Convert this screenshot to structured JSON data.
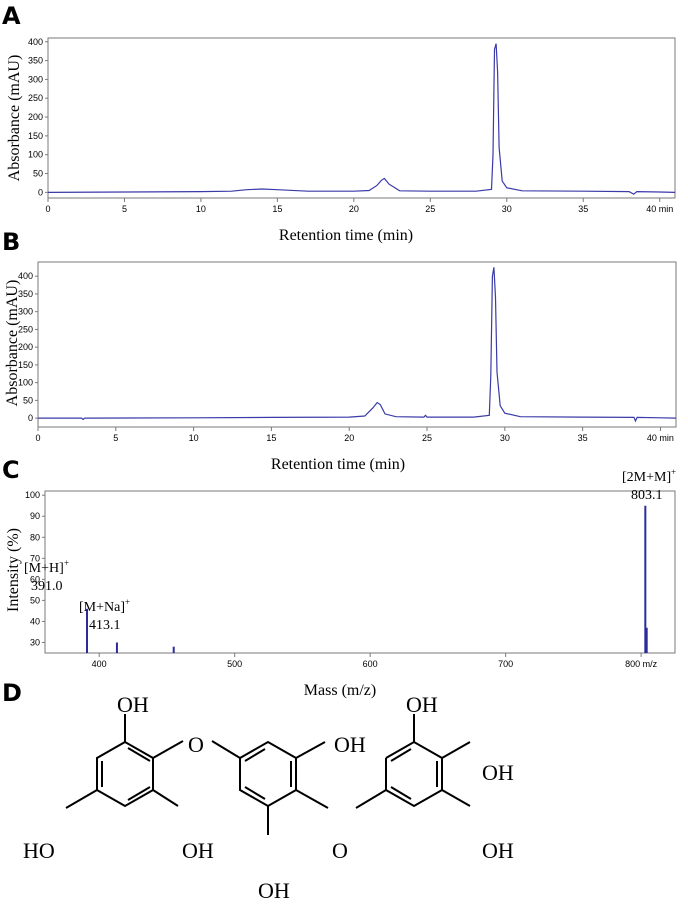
{
  "panels": {
    "a": {
      "letter": "A"
    },
    "b": {
      "letter": "B"
    },
    "c": {
      "letter": "C"
    },
    "d": {
      "letter": "D"
    }
  },
  "chart_data": [
    {
      "type": "line",
      "panel": "A",
      "xlabel": "Retention time (min)",
      "ylabel": "Absorbance (mAU)",
      "xlim": [
        0,
        41
      ],
      "ylim": [
        -15,
        410
      ],
      "xticks": [
        "0",
        "5",
        "10",
        "15",
        "20",
        "25",
        "30",
        "35",
        "40 min"
      ],
      "yticks": [
        "0",
        "50",
        "100",
        "150",
        "200",
        "250",
        "300",
        "350",
        "400"
      ],
      "color": "#3a3aa8",
      "series": [
        {
          "x": [
            0,
            5,
            10,
            12,
            13,
            14,
            15,
            17,
            20,
            21,
            21.5,
            21.8,
            22,
            22.3,
            23,
            25,
            28,
            29,
            29.1,
            29.2,
            29.3,
            29.4,
            29.5,
            29.7,
            30,
            31,
            35,
            38,
            38.3,
            38.5,
            40,
            41
          ],
          "y": [
            0,
            1,
            2,
            3,
            7,
            9,
            7,
            3,
            3,
            5,
            18,
            32,
            37,
            22,
            4,
            3,
            3,
            8,
            100,
            380,
            395,
            320,
            120,
            30,
            12,
            4,
            3,
            2,
            -5,
            2,
            1,
            0
          ]
        }
      ]
    },
    {
      "type": "line",
      "panel": "B",
      "xlabel": "Retention time (min)",
      "ylabel": "Absorbance (mAU)",
      "xlim": [
        0,
        41
      ],
      "ylim": [
        -25,
        440
      ],
      "xticks": [
        "0",
        "5",
        "10",
        "15",
        "20",
        "25",
        "30",
        "35",
        "40 min"
      ],
      "yticks": [
        "0",
        "50",
        "100",
        "150",
        "200",
        "250",
        "300",
        "350",
        "400"
      ],
      "color": "#3a3aa8",
      "series": [
        {
          "x": [
            0,
            2.8,
            2.9,
            3,
            10,
            15,
            20,
            21,
            21.5,
            21.8,
            22,
            22.3,
            23,
            24.8,
            24.9,
            25,
            28,
            29,
            29.1,
            29.2,
            29.3,
            29.4,
            29.5,
            29.7,
            30,
            31,
            35,
            38.3,
            38.4,
            38.5,
            40,
            41
          ],
          "y": [
            0,
            0,
            -4,
            0,
            1,
            2,
            3,
            6,
            28,
            44,
            38,
            12,
            4,
            3,
            8,
            3,
            3,
            8,
            120,
            400,
            425,
            340,
            130,
            35,
            14,
            4,
            3,
            2,
            -8,
            2,
            1,
            0
          ]
        }
      ]
    },
    {
      "type": "bar",
      "panel": "C",
      "xlabel": "Mass (m/z)",
      "ylabel": "Intensity (%)",
      "xlim": [
        360,
        825
      ],
      "ylim": [
        25,
        102
      ],
      "xticks": [
        "400",
        "500",
        "600",
        "700",
        "800 m/z"
      ],
      "yticks": [
        "30",
        "40",
        "50",
        "60",
        "70",
        "80",
        "90",
        "100"
      ],
      "color": "#2b2b9c",
      "peaks": [
        {
          "mz": 391.0,
          "intensity": 46
        },
        {
          "mz": 413.1,
          "intensity": 30
        },
        {
          "mz": 455.0,
          "intensity": 28
        },
        {
          "mz": 803.1,
          "intensity": 95
        },
        {
          "mz": 804.1,
          "intensity": 37
        }
      ],
      "annotations": [
        {
          "ion": "[M+H]",
          "charge": "+",
          "mz": "391.0"
        },
        {
          "ion": "[M+Na]",
          "charge": "+",
          "mz": "413.1"
        },
        {
          "ion": "[2M+M]",
          "charge": "+",
          "mz": "803.1"
        }
      ]
    }
  ],
  "structure": {
    "labels": {
      "oh": "OH",
      "ho": "HO",
      "o": "O"
    }
  }
}
